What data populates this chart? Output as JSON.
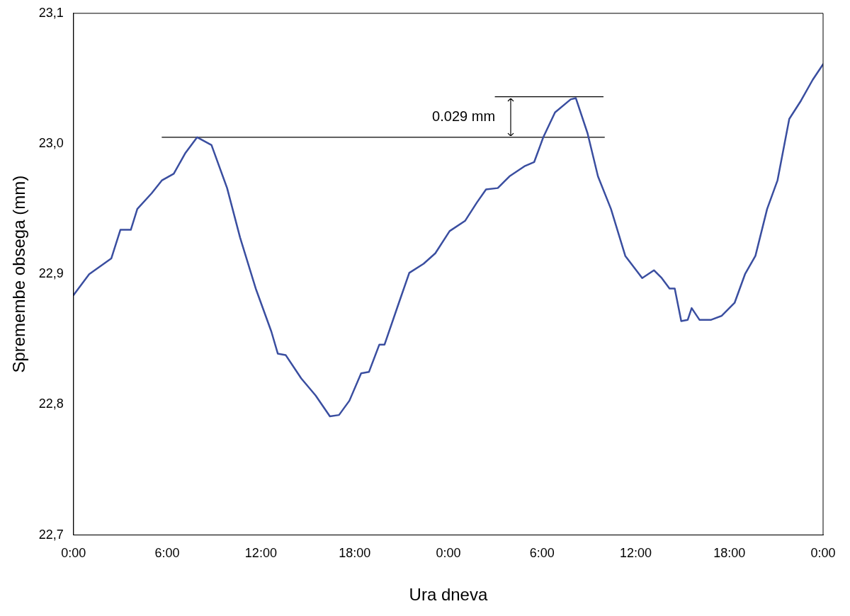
{
  "chart_data": {
    "type": "line",
    "xlabel": "Ura dneva",
    "ylabel": "Spremembe obsega (mm)",
    "xlim": [
      "--01-01T00:00",
      "--01-03T00:00"
    ],
    "xticks": [
      {
        "value": "--01-01T00:00",
        "label": "0:00"
      },
      {
        "value": "--01-01T06:00",
        "label": "6:00"
      },
      {
        "value": "--01-01T12:00",
        "label": "12:00"
      },
      {
        "value": "--01-01T18:00",
        "label": "18:00"
      },
      {
        "value": "--01-02T00:00",
        "label": "0:00"
      },
      {
        "value": "--01-02T06:00",
        "label": "6:00"
      },
      {
        "value": "--01-02T12:00",
        "label": "12:00"
      },
      {
        "value": "--01-02T18:00",
        "label": "18:00"
      },
      {
        "value": "--01-03T00:00",
        "label": "0:00"
      }
    ],
    "ylim": [
      22.7,
      23.1
    ],
    "yticks": [
      {
        "value": 22.7,
        "label": "22,7"
      },
      {
        "value": 22.8,
        "label": "22,8"
      },
      {
        "value": 22.9,
        "label": "22,9"
      },
      {
        "value": 23.0,
        "label": "23,0"
      },
      {
        "value": 23.1,
        "label": "23,1"
      }
    ],
    "grid": false,
    "legend": false,
    "marker": "none",
    "line_style": "solid",
    "annotations": [
      "0.029 mm"
    ],
    "series": [
      {
        "color": "#3a4ea0",
        "x": [
          "--01-01T00:00",
          "--01-01T01:00",
          "--01-01T02:25",
          "--01-01T03:00",
          "--01-01T03:40",
          "--01-01T04:05",
          "--01-01T05:00",
          "--01-01T05:40",
          "--01-01T06:25",
          "--01-01T07:10",
          "--01-01T07:55",
          "--01-01T08:50",
          "--01-01T09:50",
          "--01-01T10:40",
          "--01-01T11:40",
          "--01-01T12:40",
          "--01-01T13:05",
          "--01-01T13:35",
          "--01-01T14:35",
          "--01-01T15:30",
          "--01-01T16:25",
          "--01-01T17:00",
          "--01-01T17:40",
          "--01-01T18:25",
          "--01-01T18:55",
          "--01-01T19:35",
          "--01-01T19:55",
          "--01-01T20:50",
          "--01-01T21:30",
          "--01-01T22:25",
          "--01-01T23:10",
          "--01-02T00:05",
          "--01-02T01:05",
          "--01-02T01:50",
          "--01-02T02:25",
          "--01-02T03:10",
          "--01-02T03:55",
          "--01-02T04:55",
          "--01-02T05:30",
          "--01-02T06:05",
          "--01-02T06:50",
          "--01-02T07:50",
          "--01-02T08:10",
          "--01-02T08:55",
          "--01-02T09:35",
          "--01-02T10:25",
          "--01-02T11:20",
          "--01-02T12:25",
          "--01-02T13:10",
          "--01-02T13:40",
          "--01-02T14:10",
          "--01-02T14:30",
          "--01-02T14:55",
          "--01-02T15:20",
          "--01-02T15:35",
          "--01-02T16:05",
          "--01-02T16:50",
          "--01-02T17:30",
          "--01-02T18:20",
          "--01-02T19:00",
          "--01-02T19:40",
          "--01-02T20:25",
          "--01-02T21:05",
          "--01-02T21:50",
          "--01-02T22:35",
          "--01-02T23:20",
          "--01-03T00:00"
        ],
        "values": [
          22.884,
          22.9,
          22.912,
          22.934,
          22.934,
          22.95,
          22.962,
          22.972,
          22.977,
          22.993,
          23.005,
          22.999,
          22.966,
          22.928,
          22.889,
          22.856,
          22.839,
          22.838,
          22.82,
          22.807,
          22.791,
          22.792,
          22.803,
          22.824,
          22.825,
          22.846,
          22.846,
          22.878,
          22.901,
          22.908,
          22.916,
          22.933,
          22.941,
          22.955,
          22.965,
          22.966,
          22.975,
          22.983,
          22.986,
          23.005,
          23.024,
          23.034,
          23.035,
          23.008,
          22.975,
          22.95,
          22.914,
          22.897,
          22.903,
          22.897,
          22.889,
          22.889,
          22.864,
          22.865,
          22.874,
          22.865,
          22.865,
          22.868,
          22.878,
          22.9,
          22.914,
          22.95,
          22.972,
          23.019,
          23.033,
          23.049,
          23.061
        ]
      },
      {
        "type": "line",
        "color": "#000000",
        "x": [
          "--01-01T05:40",
          "--01-02T10:00"
        ],
        "values": [
          23.005,
          23.005
        ]
      },
      {
        "type": "line",
        "color": "#000000",
        "x": [
          "--01-02T03:00",
          "--01-02T09:55"
        ],
        "values": [
          23.036,
          23.036
        ]
      }
    ]
  }
}
